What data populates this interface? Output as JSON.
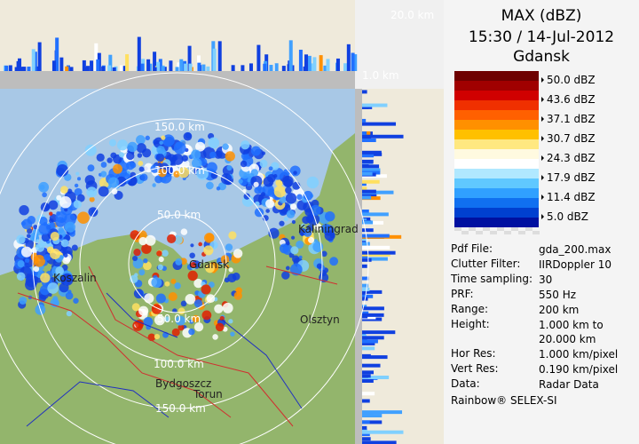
{
  "header": {
    "title": "MAX (dBZ)",
    "datetime": "15:30 / 14-Jul-2012",
    "site": "Gdansk"
  },
  "legend": {
    "labels": [
      "50.0 dBZ",
      "43.6 dBZ",
      "37.1 dBZ",
      "30.7 dBZ",
      "24.3 dBZ",
      "17.9 dBZ",
      "11.4 dBZ",
      "5.0 dBZ"
    ]
  },
  "info": {
    "rows": [
      {
        "label": "Pdf File:",
        "value": "gda_200.max"
      },
      {
        "label": "Clutter Filter:",
        "value": "IIRDoppler 10"
      },
      {
        "label": "Time sampling:",
        "value": "30"
      },
      {
        "label": "PRF:",
        "value": "550 Hz"
      },
      {
        "label": "Range:",
        "value": "200 km"
      },
      {
        "label": "Height:",
        "value": "1.000 km to\n20.000 km"
      },
      {
        "label": "Hor Res:",
        "value": "1.000 km/pixel"
      },
      {
        "label": "Vert Res:",
        "value": "0.190 km/pixel"
      },
      {
        "label": "Data:",
        "value": "Radar Data"
      }
    ]
  },
  "footer": "Rainbow® SELEX-SI",
  "map": {
    "height_labels": [
      "20.0 km",
      "1.0 km"
    ],
    "range_labels": [
      "150.0 km",
      "100.0 km",
      "50.0 km",
      "50.0 km",
      "100.0 km",
      "150.0 km"
    ],
    "cities": [
      "Kaliningrad",
      "Gdansk",
      "Koszalin",
      "Olsztyn",
      "Bydgoszcz",
      "Torun"
    ]
  }
}
